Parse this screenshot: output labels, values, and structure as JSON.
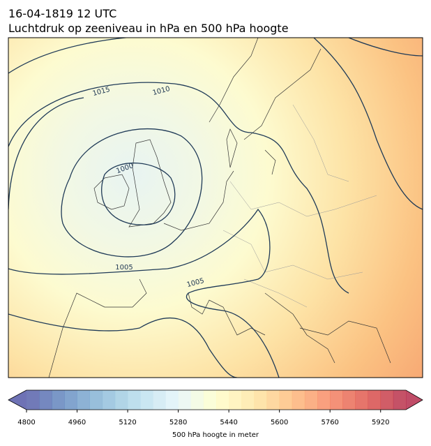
{
  "header": {
    "time": "16-04-1819 12 UTC",
    "title": "Luchtdruk op zeeniveau in hPa en 500 hPa hoogte"
  },
  "map": {
    "contour_labels": [
      "1015",
      "1010",
      "1000",
      "1005",
      "1005"
    ]
  },
  "colorbar": {
    "lim": [
      4800,
      6000
    ],
    "step": 40,
    "ticks": [
      4800,
      4960,
      5120,
      5280,
      5440,
      5600,
      5760,
      5920
    ],
    "label": "500 hPa hoogte in meter"
  }
}
